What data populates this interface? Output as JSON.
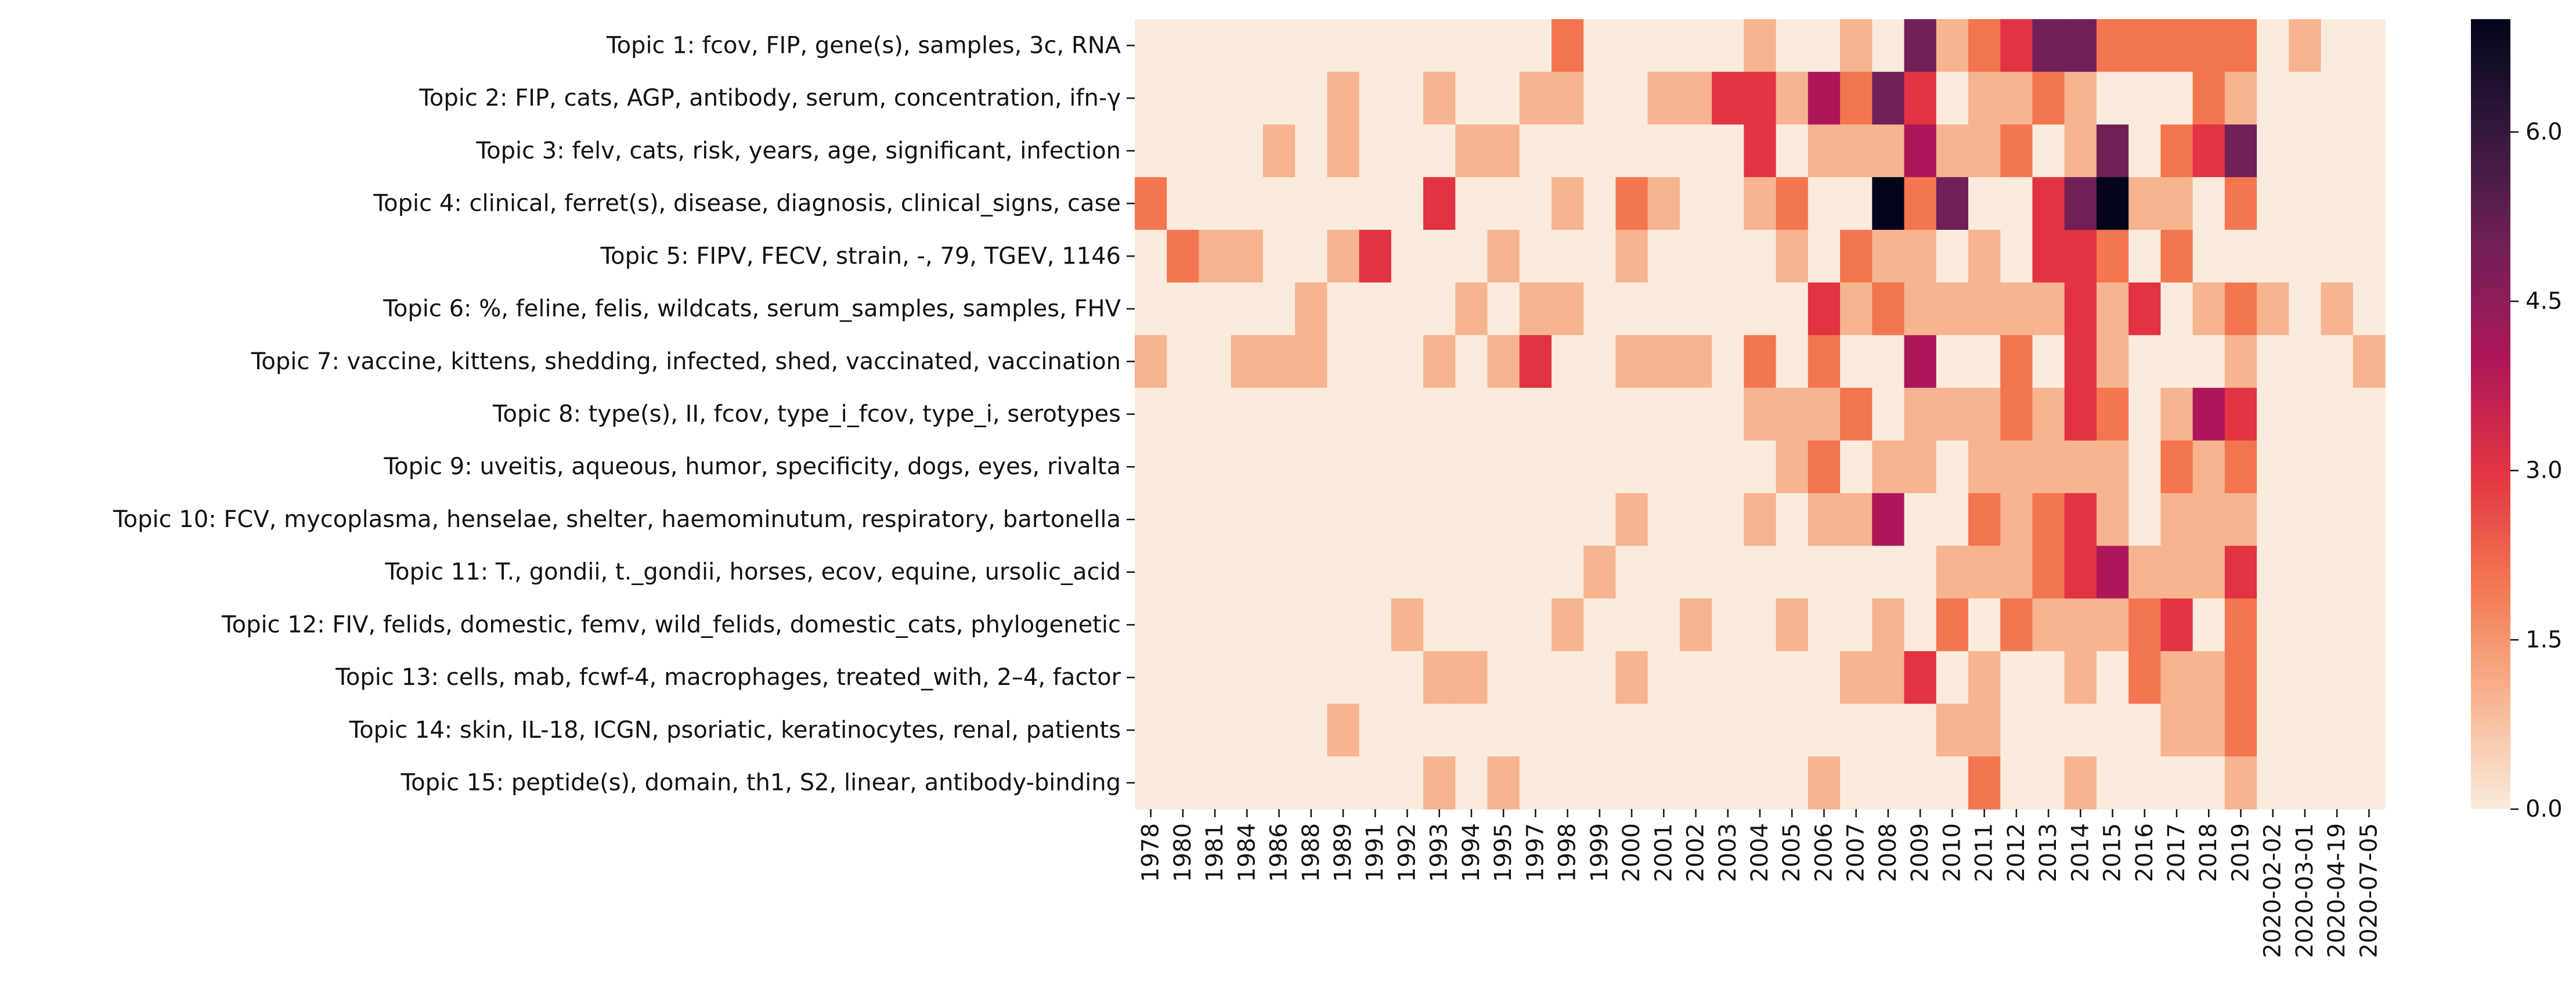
{
  "chart_data": {
    "type": "heatmap",
    "title": "",
    "xlabel": "",
    "ylabel": "",
    "x": [
      "1978",
      "1980",
      "1981",
      "1984",
      "1986",
      "1988",
      "1989",
      "1991",
      "1992",
      "1993",
      "1994",
      "1995",
      "1997",
      "1998",
      "1999",
      "2000",
      "2001",
      "2002",
      "2003",
      "2004",
      "2005",
      "2006",
      "2007",
      "2008",
      "2009",
      "2010",
      "2011",
      "2012",
      "2013",
      "2014",
      "2015",
      "2016",
      "2017",
      "2018",
      "2019",
      "2020-02-02",
      "2020-03-01",
      "2020-04-19",
      "2020-07-05"
    ],
    "y": [
      "Topic 1: fcov, FIP, gene(s), samples, 3c, RNA",
      "Topic 2: FIP, cats, AGP, antibody, serum, concentration, ifn-γ",
      "Topic 3: felv, cats, risk, years, age, significant, infection",
      "Topic 4: clinical, ferret(s), disease, diagnosis, clinical_signs, case",
      "Topic 5: FIPV, FECV, strain, -, 79, TGEV, 1146",
      "Topic 6: %, feline, felis, wildcats, serum_samples, samples, FHV",
      "Topic 7: vaccine, kittens, shedding, infected, shed, vaccinated, vaccination",
      "Topic 8: type(s), II, fcov, type_i_fcov, type_i, serotypes",
      "Topic 9: uveitis, aqueous, humor, specificity, dogs, eyes, rivalta",
      "Topic 10: FCV, mycoplasma, henselae, shelter, haemominutum, respiratory, bartonella",
      "Topic 11: T., gondii, t._gondii, horses, ecov, equine, ursolic_acid",
      "Topic 12: FIV, felids, domestic, femv, wild_felids, domestic_cats, phylogenetic",
      "Topic 13: cells, mab, fcwf-4, macrophages, treated_with, 2–4, factor",
      "Topic 14: skin, IL-18, ICGN, psoriatic, keratinocytes, renal, patients",
      "Topic 15: peptide(s), domain, th1, S2, linear, antibody-binding"
    ],
    "values": [
      [
        0,
        0,
        0,
        0,
        0,
        0,
        0,
        0,
        0,
        0,
        0,
        0,
        0,
        2,
        0,
        0,
        0,
        0,
        0,
        1,
        0,
        0,
        1,
        0,
        5,
        1,
        2,
        3,
        5,
        5,
        2,
        2,
        2,
        2,
        2,
        0,
        1,
        0,
        0
      ],
      [
        0,
        0,
        0,
        0,
        0,
        0,
        1,
        0,
        0,
        1,
        0,
        0,
        1,
        1,
        0,
        0,
        1,
        1,
        3,
        3,
        1,
        4,
        2,
        5,
        3,
        0,
        1,
        1,
        2,
        1,
        0,
        0,
        0,
        2,
        1,
        0,
        0,
        0,
        0
      ],
      [
        0,
        0,
        0,
        0,
        1,
        0,
        1,
        0,
        0,
        0,
        1,
        1,
        0,
        0,
        0,
        0,
        0,
        0,
        0,
        3,
        0,
        1,
        1,
        1,
        4,
        1,
        1,
        2,
        0,
        1,
        5,
        0,
        2,
        3,
        5,
        0,
        0,
        0,
        0
      ],
      [
        2,
        0,
        0,
        0,
        0,
        0,
        0,
        0,
        0,
        3,
        0,
        0,
        0,
        1,
        0,
        2,
        1,
        0,
        0,
        1,
        2,
        0,
        0,
        7,
        2,
        5,
        0,
        0,
        3,
        5,
        7,
        1,
        1,
        0,
        2,
        0,
        0,
        0,
        0
      ],
      [
        0,
        2,
        1,
        1,
        0,
        0,
        1,
        3,
        0,
        0,
        0,
        1,
        0,
        0,
        0,
        1,
        0,
        0,
        0,
        0,
        1,
        0,
        2,
        1,
        1,
        0,
        1,
        0,
        3,
        3,
        2,
        0,
        2,
        0,
        0,
        0,
        0,
        0,
        0
      ],
      [
        0,
        0,
        0,
        0,
        0,
        1,
        0,
        0,
        0,
        0,
        1,
        0,
        1,
        1,
        0,
        0,
        0,
        0,
        0,
        0,
        0,
        3,
        1,
        2,
        1,
        1,
        1,
        1,
        1,
        3,
        1,
        3,
        0,
        1,
        2,
        1,
        0,
        1,
        0
      ],
      [
        1,
        0,
        0,
        1,
        1,
        1,
        0,
        0,
        0,
        1,
        0,
        1,
        3,
        0,
        0,
        1,
        1,
        1,
        0,
        2,
        0,
        2,
        0,
        0,
        4,
        0,
        0,
        2,
        0,
        3,
        1,
        0,
        0,
        0,
        1,
        0,
        0,
        0,
        1
      ],
      [
        0,
        0,
        0,
        0,
        0,
        0,
        0,
        0,
        0,
        0,
        0,
        0,
        0,
        0,
        0,
        0,
        0,
        0,
        0,
        1,
        1,
        1,
        2,
        0,
        1,
        1,
        1,
        2,
        1,
        3,
        2,
        0,
        1,
        4,
        3,
        0,
        0,
        0,
        0
      ],
      [
        0,
        0,
        0,
        0,
        0,
        0,
        0,
        0,
        0,
        0,
        0,
        0,
        0,
        0,
        0,
        0,
        0,
        0,
        0,
        0,
        1,
        2,
        0,
        1,
        1,
        0,
        1,
        1,
        1,
        1,
        1,
        0,
        2,
        1,
        2,
        0,
        0,
        0,
        0
      ],
      [
        0,
        0,
        0,
        0,
        0,
        0,
        0,
        0,
        0,
        0,
        0,
        0,
        0,
        0,
        0,
        1,
        0,
        0,
        0,
        1,
        0,
        1,
        1,
        4,
        0,
        0,
        2,
        1,
        2,
        3,
        1,
        0,
        1,
        1,
        1,
        0,
        0,
        0,
        0
      ],
      [
        0,
        0,
        0,
        0,
        0,
        0,
        0,
        0,
        0,
        0,
        0,
        0,
        0,
        0,
        1,
        0,
        0,
        0,
        0,
        0,
        0,
        0,
        0,
        0,
        0,
        1,
        1,
        1,
        2,
        3,
        4,
        1,
        1,
        1,
        3,
        0,
        0,
        0,
        0
      ],
      [
        0,
        0,
        0,
        0,
        0,
        0,
        0,
        0,
        1,
        0,
        0,
        0,
        0,
        1,
        0,
        0,
        0,
        1,
        0,
        0,
        1,
        0,
        0,
        1,
        0,
        2,
        0,
        2,
        1,
        1,
        1,
        2,
        3,
        0,
        2,
        0,
        0,
        0,
        0
      ],
      [
        0,
        0,
        0,
        0,
        0,
        0,
        0,
        0,
        0,
        1,
        1,
        0,
        0,
        0,
        0,
        1,
        0,
        0,
        0,
        0,
        0,
        0,
        1,
        1,
        3,
        0,
        1,
        0,
        0,
        1,
        0,
        2,
        1,
        1,
        2,
        0,
        0,
        0,
        0
      ],
      [
        0,
        0,
        0,
        0,
        0,
        0,
        1,
        0,
        0,
        0,
        0,
        0,
        0,
        0,
        0,
        0,
        0,
        0,
        0,
        0,
        0,
        0,
        0,
        0,
        0,
        1,
        1,
        0,
        0,
        0,
        0,
        0,
        1,
        1,
        2,
        0,
        0,
        0,
        0
      ],
      [
        0,
        0,
        0,
        0,
        0,
        0,
        0,
        0,
        0,
        1,
        0,
        1,
        0,
        0,
        0,
        0,
        0,
        0,
        0,
        0,
        0,
        1,
        0,
        0,
        0,
        0,
        2,
        0,
        0,
        1,
        0,
        0,
        0,
        0,
        1,
        0,
        0,
        0,
        0
      ]
    ],
    "colorbar": {
      "min": 0.0,
      "max": 7,
      "ticks": [
        0.0,
        1.5,
        3.0,
        4.5,
        6.0
      ],
      "tick_labels": [
        "0.0",
        "1.5",
        "3.0",
        "4.5",
        "6.0"
      ]
    },
    "colormap": [
      "#faebdd",
      "#f6b48f",
      "#f37651",
      "#e13342",
      "#ad1759",
      "#701f57",
      "#35193e",
      "#03051a"
    ],
    "grid": false,
    "legend": "colorbar-right"
  }
}
